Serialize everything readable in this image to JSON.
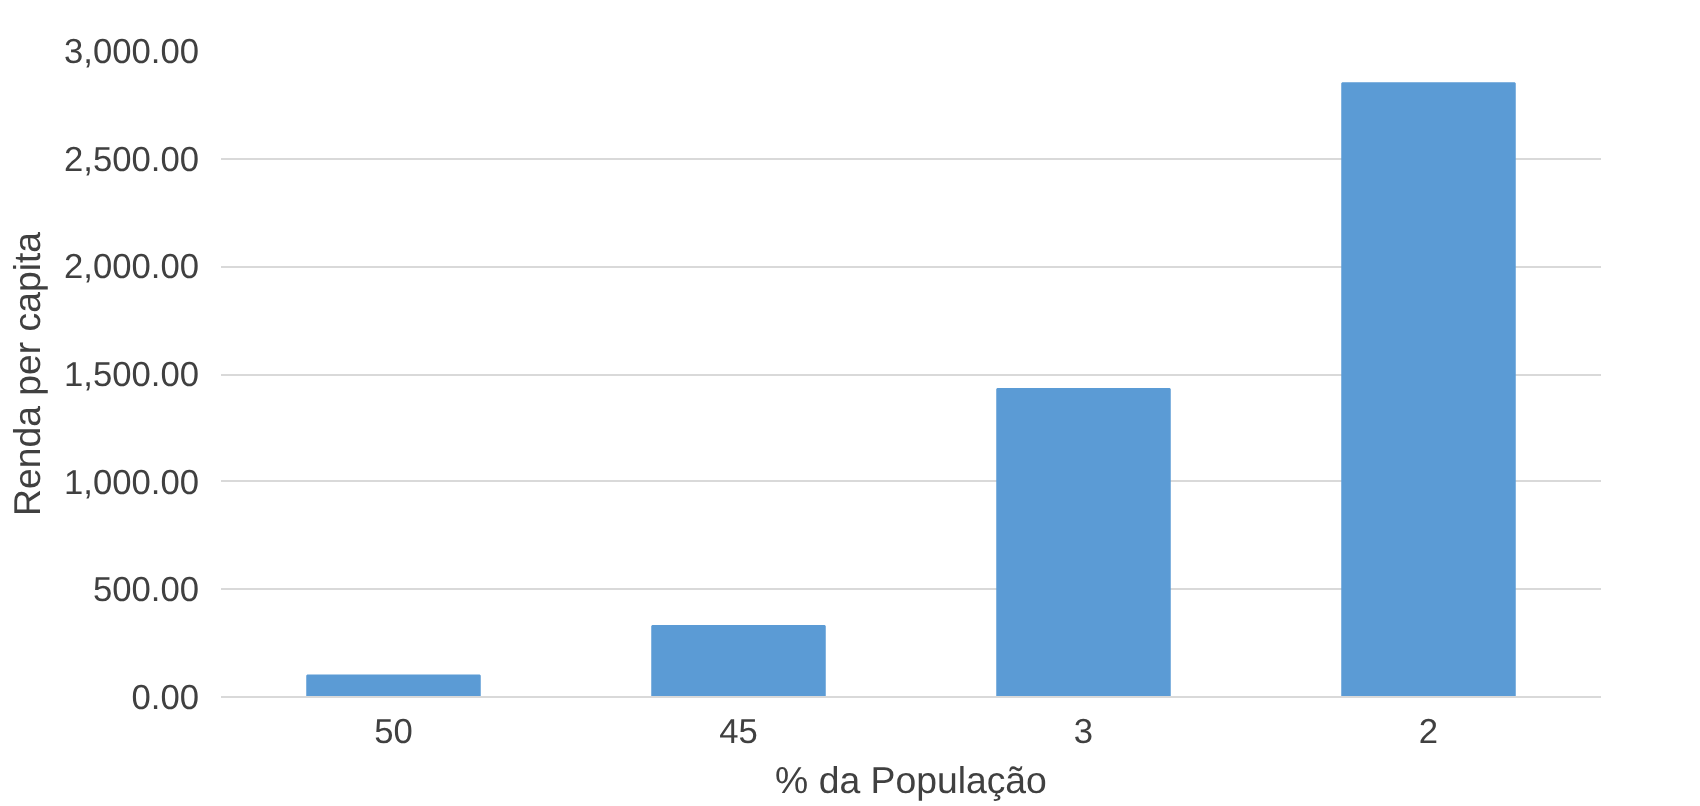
{
  "chart_data": {
    "type": "bar",
    "xlabel": "% da População",
    "ylabel": "Renda per capita",
    "categories": [
      "50",
      "45",
      "3",
      "2"
    ],
    "values": [
      100,
      330,
      1430,
      2850
    ],
    "color": "#5b9bd5",
    "ylim": [
      0,
      3000
    ],
    "yticks": [
      {
        "value": 0,
        "label": "0.00"
      },
      {
        "value": 500,
        "label": "500.00"
      },
      {
        "value": 1000,
        "label": "1,000.00"
      },
      {
        "value": 1500,
        "label": "1,500.00"
      },
      {
        "value": 2000,
        "label": "2,000.00"
      },
      {
        "value": 2500,
        "label": "2,500.00"
      },
      {
        "value": 3000,
        "label": "3,000.00"
      }
    ],
    "grid": "y"
  }
}
